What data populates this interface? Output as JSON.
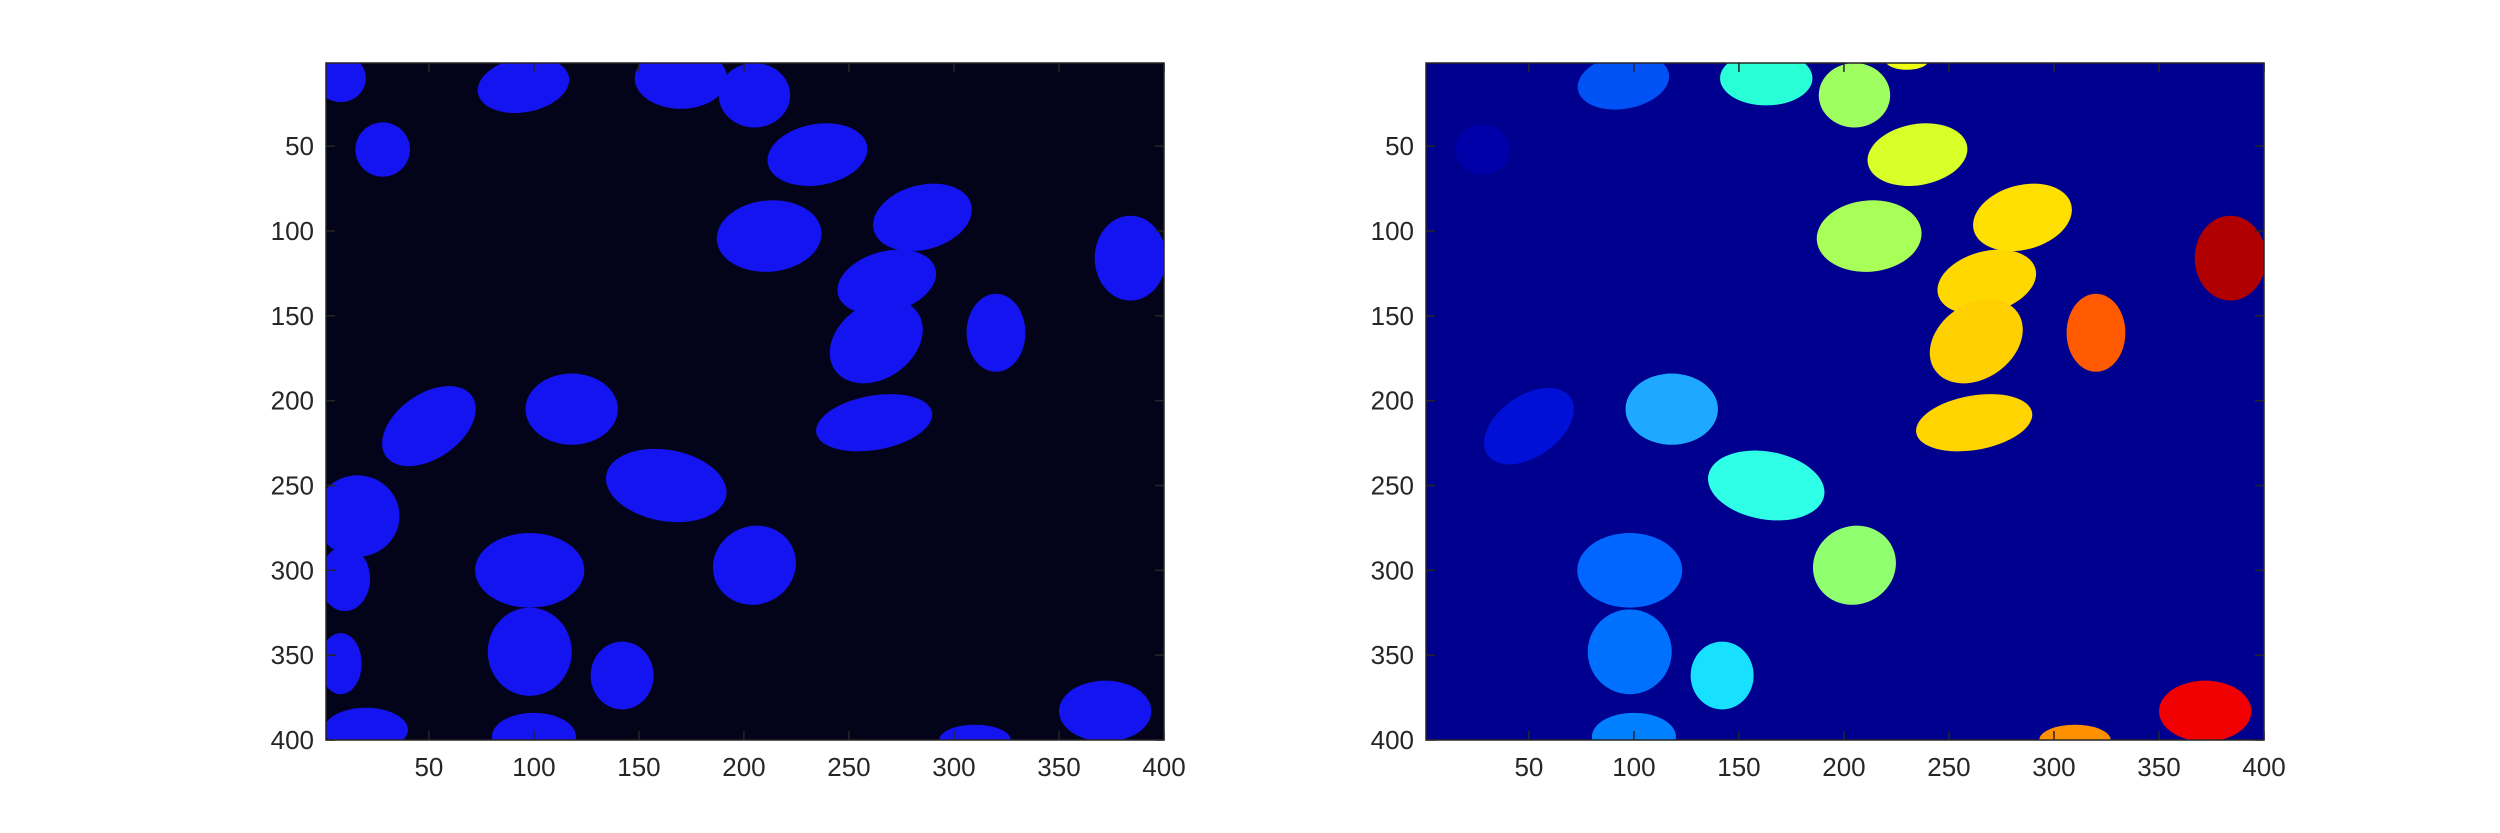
{
  "figure": {
    "axes": [
      {
        "name": "left",
        "xlim": [
          1,
          400
        ],
        "ylim": [
          1,
          400
        ],
        "xticks": [
          50,
          100,
          150,
          200,
          250,
          300,
          350,
          400
        ],
        "yticks": [
          50,
          100,
          150,
          200,
          250,
          300,
          350,
          400
        ],
        "background": "#03031a",
        "blobs": [
          {
            "cx": 8,
            "cy": 10,
            "rx": 12,
            "ry": 14,
            "color": "#1414f0",
            "rot": 0
          },
          {
            "cx": 95,
            "cy": 14,
            "rx": 22,
            "ry": 16,
            "color": "#1414f0",
            "rot": -10
          },
          {
            "cx": 170,
            "cy": 10,
            "rx": 22,
            "ry": 18,
            "color": "#1414f0",
            "rot": 0
          },
          {
            "cx": 205,
            "cy": 20,
            "rx": 17,
            "ry": 19,
            "color": "#1414f0",
            "rot": 0
          },
          {
            "cx": 28,
            "cy": 52,
            "rx": 13,
            "ry": 16,
            "color": "#1414f0",
            "rot": 0
          },
          {
            "cx": 235,
            "cy": 55,
            "rx": 24,
            "ry": 18,
            "color": "#1414f0",
            "rot": -10
          },
          {
            "cx": 212,
            "cy": 103,
            "rx": 25,
            "ry": 21,
            "color": "#1414f0",
            "rot": -5
          },
          {
            "cx": 285,
            "cy": 92,
            "rx": 24,
            "ry": 19,
            "color": "#1414f0",
            "rot": -15
          },
          {
            "cx": 384,
            "cy": 116,
            "rx": 17,
            "ry": 25,
            "color": "#1414f0",
            "rot": 0
          },
          {
            "cx": 268,
            "cy": 130,
            "rx": 24,
            "ry": 18,
            "color": "#1414f0",
            "rot": -15
          },
          {
            "cx": 263,
            "cy": 165,
            "rx": 24,
            "ry": 22,
            "color": "#1414f0",
            "rot": -35
          },
          {
            "cx": 320,
            "cy": 160,
            "rx": 14,
            "ry": 23,
            "color": "#1414f0",
            "rot": 0
          },
          {
            "cx": 50,
            "cy": 215,
            "rx": 25,
            "ry": 19,
            "color": "#1414f0",
            "rot": -35
          },
          {
            "cx": 118,
            "cy": 205,
            "rx": 22,
            "ry": 21,
            "color": "#1414f0",
            "rot": 0
          },
          {
            "cx": 262,
            "cy": 213,
            "rx": 28,
            "ry": 16,
            "color": "#1414f0",
            "rot": -10
          },
          {
            "cx": 163,
            "cy": 250,
            "rx": 29,
            "ry": 21,
            "color": "#1414f0",
            "rot": 10
          },
          {
            "cx": 16,
            "cy": 268,
            "rx": 20,
            "ry": 24,
            "color": "#1414f0",
            "rot": 0
          },
          {
            "cx": 98,
            "cy": 300,
            "rx": 26,
            "ry": 22,
            "color": "#1414f0",
            "rot": 0
          },
          {
            "cx": 205,
            "cy": 297,
            "rx": 20,
            "ry": 23,
            "color": "#1414f0",
            "rot": -25
          },
          {
            "cx": 10,
            "cy": 305,
            "rx": 12,
            "ry": 19,
            "color": "#1414f0",
            "rot": 0
          },
          {
            "cx": 98,
            "cy": 348,
            "rx": 20,
            "ry": 26,
            "color": "#1414f0",
            "rot": 0
          },
          {
            "cx": 142,
            "cy": 362,
            "rx": 15,
            "ry": 20,
            "color": "#1414f0",
            "rot": 0
          },
          {
            "cx": 8,
            "cy": 355,
            "rx": 10,
            "ry": 18,
            "color": "#1414f0",
            "rot": 0
          },
          {
            "cx": 372,
            "cy": 383,
            "rx": 22,
            "ry": 18,
            "color": "#1414f0",
            "rot": 0
          },
          {
            "cx": 100,
            "cy": 398,
            "rx": 20,
            "ry": 14,
            "color": "#1414f0",
            "rot": 0
          },
          {
            "cx": 20,
            "cy": 394,
            "rx": 20,
            "ry": 13,
            "color": "#1414f0",
            "rot": 0
          },
          {
            "cx": 310,
            "cy": 400,
            "rx": 17,
            "ry": 9,
            "color": "#1414f0",
            "rot": 0
          }
        ]
      },
      {
        "name": "right",
        "xlim": [
          1,
          400
        ],
        "ylim": [
          1,
          400
        ],
        "xticks": [
          50,
          100,
          150,
          200,
          250,
          300,
          350,
          400
        ],
        "yticks": [
          50,
          100,
          150,
          200,
          250,
          300,
          350,
          400
        ],
        "background": "#00008f",
        "blobs": [
          {
            "cx": 28,
            "cy": 52,
            "rx": 13,
            "ry": 15,
            "color": "#0000a8",
            "rot": 0
          },
          {
            "cx": 50,
            "cy": 215,
            "rx": 24,
            "ry": 18,
            "color": "#0010d6",
            "rot": -35
          },
          {
            "cx": 95,
            "cy": 12,
            "rx": 22,
            "ry": 16,
            "color": "#0052f5",
            "rot": -10
          },
          {
            "cx": 98,
            "cy": 300,
            "rx": 25,
            "ry": 22,
            "color": "#0066ff",
            "rot": 0
          },
          {
            "cx": 98,
            "cy": 348,
            "rx": 20,
            "ry": 25,
            "color": "#0070ff",
            "rot": 0
          },
          {
            "cx": 100,
            "cy": 398,
            "rx": 20,
            "ry": 14,
            "color": "#0080ff",
            "rot": 0
          },
          {
            "cx": 118,
            "cy": 205,
            "rx": 22,
            "ry": 21,
            "color": "#1ea8ff",
            "rot": 0
          },
          {
            "cx": 142,
            "cy": 362,
            "rx": 15,
            "ry": 20,
            "color": "#18e0ff",
            "rot": 0
          },
          {
            "cx": 163,
            "cy": 10,
            "rx": 22,
            "ry": 16,
            "color": "#28ffd6",
            "rot": 0
          },
          {
            "cx": 163,
            "cy": 250,
            "rx": 28,
            "ry": 20,
            "color": "#30ffe8",
            "rot": 10
          },
          {
            "cx": 205,
            "cy": 20,
            "rx": 17,
            "ry": 19,
            "color": "#a0ff60",
            "rot": 0
          },
          {
            "cx": 205,
            "cy": 297,
            "rx": 20,
            "ry": 23,
            "color": "#90ff70",
            "rot": -25
          },
          {
            "cx": 212,
            "cy": 103,
            "rx": 25,
            "ry": 21,
            "color": "#a8ff58",
            "rot": -5
          },
          {
            "cx": 235,
            "cy": 55,
            "rx": 24,
            "ry": 18,
            "color": "#d8ff28",
            "rot": -10
          },
          {
            "cx": 285,
            "cy": 92,
            "rx": 24,
            "ry": 19,
            "color": "#ffe000",
            "rot": -15
          },
          {
            "cx": 268,
            "cy": 130,
            "rx": 24,
            "ry": 18,
            "color": "#ffd800",
            "rot": -15
          },
          {
            "cx": 263,
            "cy": 165,
            "rx": 24,
            "ry": 22,
            "color": "#ffd000",
            "rot": -35
          },
          {
            "cx": 262,
            "cy": 213,
            "rx": 28,
            "ry": 16,
            "color": "#ffd400",
            "rot": -10
          },
          {
            "cx": 320,
            "cy": 160,
            "rx": 14,
            "ry": 23,
            "color": "#ff5a00",
            "rot": 0
          },
          {
            "cx": 310,
            "cy": 400,
            "rx": 17,
            "ry": 9,
            "color": "#ff9000",
            "rot": 0
          },
          {
            "cx": 372,
            "cy": 383,
            "rx": 22,
            "ry": 18,
            "color": "#f00000",
            "rot": 0
          },
          {
            "cx": 384,
            "cy": 116,
            "rx": 17,
            "ry": 25,
            "color": "#b00000",
            "rot": 0
          },
          {
            "cx": 230,
            "cy": 0,
            "rx": 10,
            "ry": 5,
            "color": "#f0ff10",
            "rot": 0
          }
        ]
      }
    ]
  }
}
